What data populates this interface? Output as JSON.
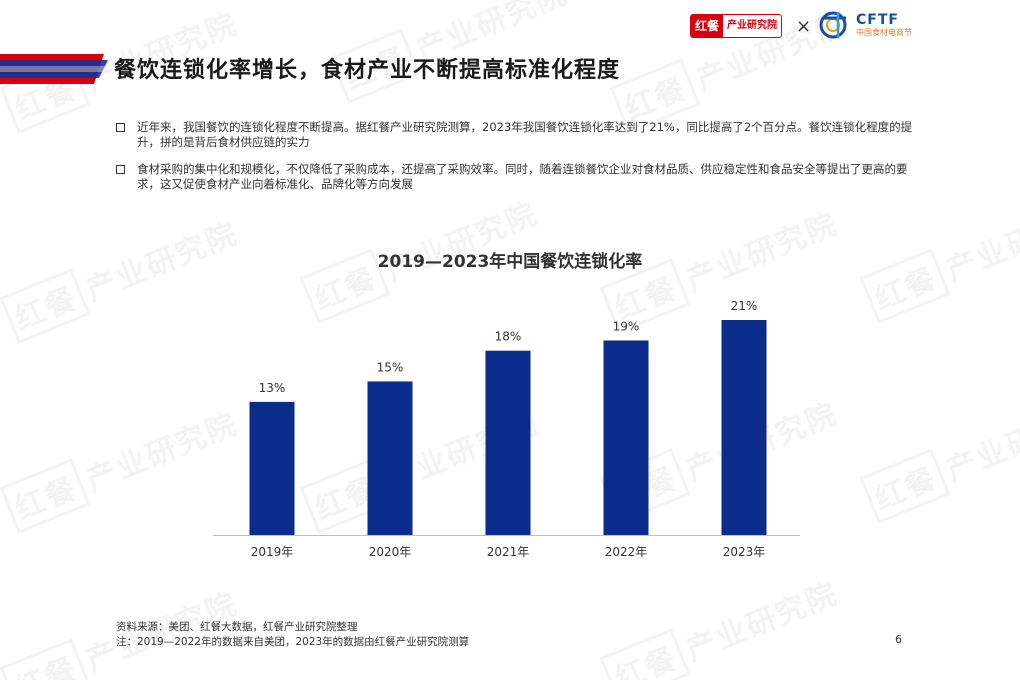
{
  "header": {
    "title": "餐饮连锁化率增长，食材产业不断提高标准化程度",
    "logo_red_part1": "红餐",
    "logo_red_part2": "产业研究院",
    "times_sign": "×",
    "logo_cftf": "CFTF",
    "logo_cftf_sub": "中国食材电商节"
  },
  "bullets": [
    "近年来，我国餐饮的连锁化程度不断提高。据红餐产业研究院测算，2023年我国餐饮连锁化率达到了21%，同比提高了2个百分点。餐饮连锁化程度的提升，拼的是背后食材供应链的实力",
    "食材采购的集中化和规模化，不仅降低了采购成本，还提高了采购效率。同时，随着连锁餐饮企业对食材品质、供应稳定性和食品安全等提出了更高的要求，这又促使食材产业向着标准化、品牌化等方向发展"
  ],
  "chart_data": {
    "type": "bar",
    "title": "2019—2023年中国餐饮连锁化率",
    "categories": [
      "2019年",
      "2020年",
      "2021年",
      "2022年",
      "2023年"
    ],
    "values": [
      13,
      15,
      18,
      19,
      21
    ],
    "value_labels": [
      "13%",
      "15%",
      "18%",
      "19%",
      "21%"
    ],
    "ylim": [
      0,
      21
    ],
    "grid": false,
    "bar_color": "#0a2d8c"
  },
  "watermark": {
    "logo": "红餐",
    "text": "产业研究院"
  },
  "footer": {
    "source": "资料来源：美团、红餐大数据，红餐产业研究院整理",
    "note": "注：2019—2022年的数据来自美团，2023年的数据由红餐产业研究院测算"
  },
  "page_number": "6"
}
